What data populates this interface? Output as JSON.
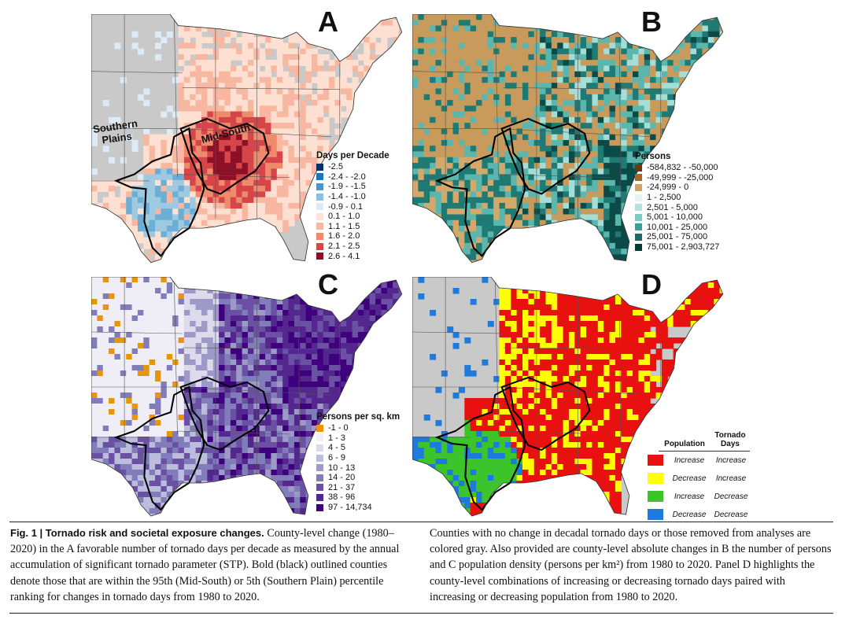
{
  "figure": {
    "panels": [
      {
        "letter": "A",
        "palette": [
          "#08306b",
          "#2171b5",
          "#6baed6",
          "#9ecae1",
          "#deebf7",
          "#fde0d2",
          "#f7b7a0",
          "#ef8a6c",
          "#d6454a",
          "#8c1027"
        ],
        "legend": {
          "title": "Days per Decade",
          "items": [
            {
              "label": "-2.5",
              "color": "#08306b"
            },
            {
              "label": "-2.4 - -2.0",
              "color": "#2171b5"
            },
            {
              "label": "-1.9 - -1.5",
              "color": "#4a96cc"
            },
            {
              "label": "-1.4 - -1.0",
              "color": "#8dc0e0"
            },
            {
              "label": "-0.9 - 0.1",
              "color": "#deebf7"
            },
            {
              "label": "0.1 - 1.0",
              "color": "#fde4d6"
            },
            {
              "label": "1.1 - 1.5",
              "color": "#f7b7a0"
            },
            {
              "label": "1.6 - 2.0",
              "color": "#ef8a6c"
            },
            {
              "label": "2.1 - 2.5",
              "color": "#d6454a"
            },
            {
              "label": "2.6 - 4.1",
              "color": "#8c1027"
            }
          ]
        },
        "labels": {
          "southern": "Southern\nPlains",
          "midsouth": "Mid-South"
        }
      },
      {
        "letter": "B",
        "palette": [
          "#c89b5c",
          "#d4a76a",
          "#0b4a47",
          "#1f7a74",
          "#5bb7ad",
          "#a6ddd6",
          "#e6f4f2"
        ],
        "legend": {
          "title": "Persons",
          "items": [
            {
              "label": "-584,832 - -50,000",
              "color": "#6b3a0c"
            },
            {
              "label": "-49,999 - -25,000",
              "color": "#a66a24"
            },
            {
              "label": "-24,999 - 0",
              "color": "#d3a35f"
            },
            {
              "label": "1 - 2,500",
              "color": "#e4f4f1"
            },
            {
              "label": "2,501 - 5,000",
              "color": "#b2e2db"
            },
            {
              "label": "5,001 - 10,000",
              "color": "#7ccbc1"
            },
            {
              "label": "10,001 - 25,000",
              "color": "#3f9c94"
            },
            {
              "label": "25,001 - 75,000",
              "color": "#1b6b66"
            },
            {
              "label": "75,001 - 2,903,727",
              "color": "#063c38"
            }
          ]
        }
      },
      {
        "letter": "C",
        "palette": [
          "#efedf6",
          "#dcdaeb",
          "#bcbddc",
          "#9e9ac8",
          "#807dba",
          "#6a51a3",
          "#54278f",
          "#3f007d"
        ],
        "legend": {
          "title": "Persons per sq. km",
          "items": [
            {
              "label": "-1 - 0",
              "color": "#e8950c"
            },
            {
              "label": "1 - 3",
              "color": "#f2f0f7"
            },
            {
              "label": "4 - 5",
              "color": "#dadaeb"
            },
            {
              "label": "6 - 9",
              "color": "#bcbddc"
            },
            {
              "label": "10 - 13",
              "color": "#9e9ac8"
            },
            {
              "label": "14 - 20",
              "color": "#807dba"
            },
            {
              "label": "21 - 37",
              "color": "#6a51a3"
            },
            {
              "label": "38 - 96",
              "color": "#54278f"
            },
            {
              "label": "97 - 14,734",
              "color": "#3f007d"
            }
          ]
        }
      },
      {
        "letter": "D",
        "palette": [
          "#e8110f",
          "#ffff00",
          "#3dc42a",
          "#1e7bdc",
          "#c9c9c9"
        ],
        "table": {
          "header_population": "Population",
          "header_tornado": "Tornado\nDays",
          "rows": [
            {
              "population": "Increase",
              "tornado": "Increase",
              "color": "#e8110f"
            },
            {
              "population": "Decrease",
              "tornado": "Increase",
              "color": "#ffff00"
            },
            {
              "population": "Increase",
              "tornado": "Decrease",
              "color": "#3dc42a"
            },
            {
              "population": "Decrease",
              "tornado": "Decrease",
              "color": "#1e7bdc"
            }
          ]
        }
      }
    ]
  },
  "caption": {
    "lead": "Fig. 1 | Tornado risk and societal exposure changes.",
    "left_text": " County-level change (1980–2020) in the A favorable number of tornado days per decade as measured by the annual accumulation of significant tornado parameter (STP). Bold (black) outlined counties denote those that are within the 95th (Mid-South) or 5th (Southern Plain) percentile ranking for changes in tornado days from 1980 to 2020.",
    "right_text": "Counties with no change in decadal tornado days or those removed from analyses are colored gray. Also provided are county-level absolute changes in B the number of persons and C population density (persons per km²) from 1980 to 2020. Panel D highlights the county-level combinations of increasing or decreasing tornado days paired with increasing or decreasing population from 1980 to 2020."
  }
}
